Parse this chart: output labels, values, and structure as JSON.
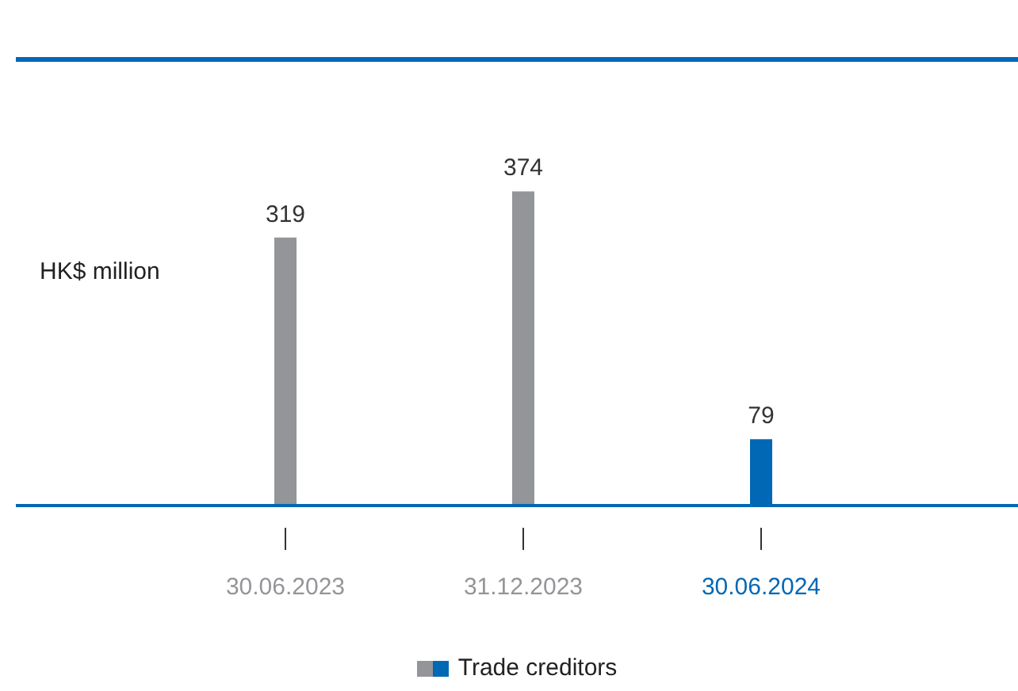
{
  "chart_data": {
    "type": "bar",
    "ylabel": "HK$ million",
    "categories": [
      "30.06.2023",
      "31.12.2023",
      "30.06.2024"
    ],
    "series": [
      {
        "name": "Trade creditors",
        "colors": [
          "#939598",
          "#939598",
          "#0068b4"
        ],
        "values": [
          319,
          374,
          79
        ]
      }
    ],
    "data_labels": true,
    "legend": "bottom"
  }
}
